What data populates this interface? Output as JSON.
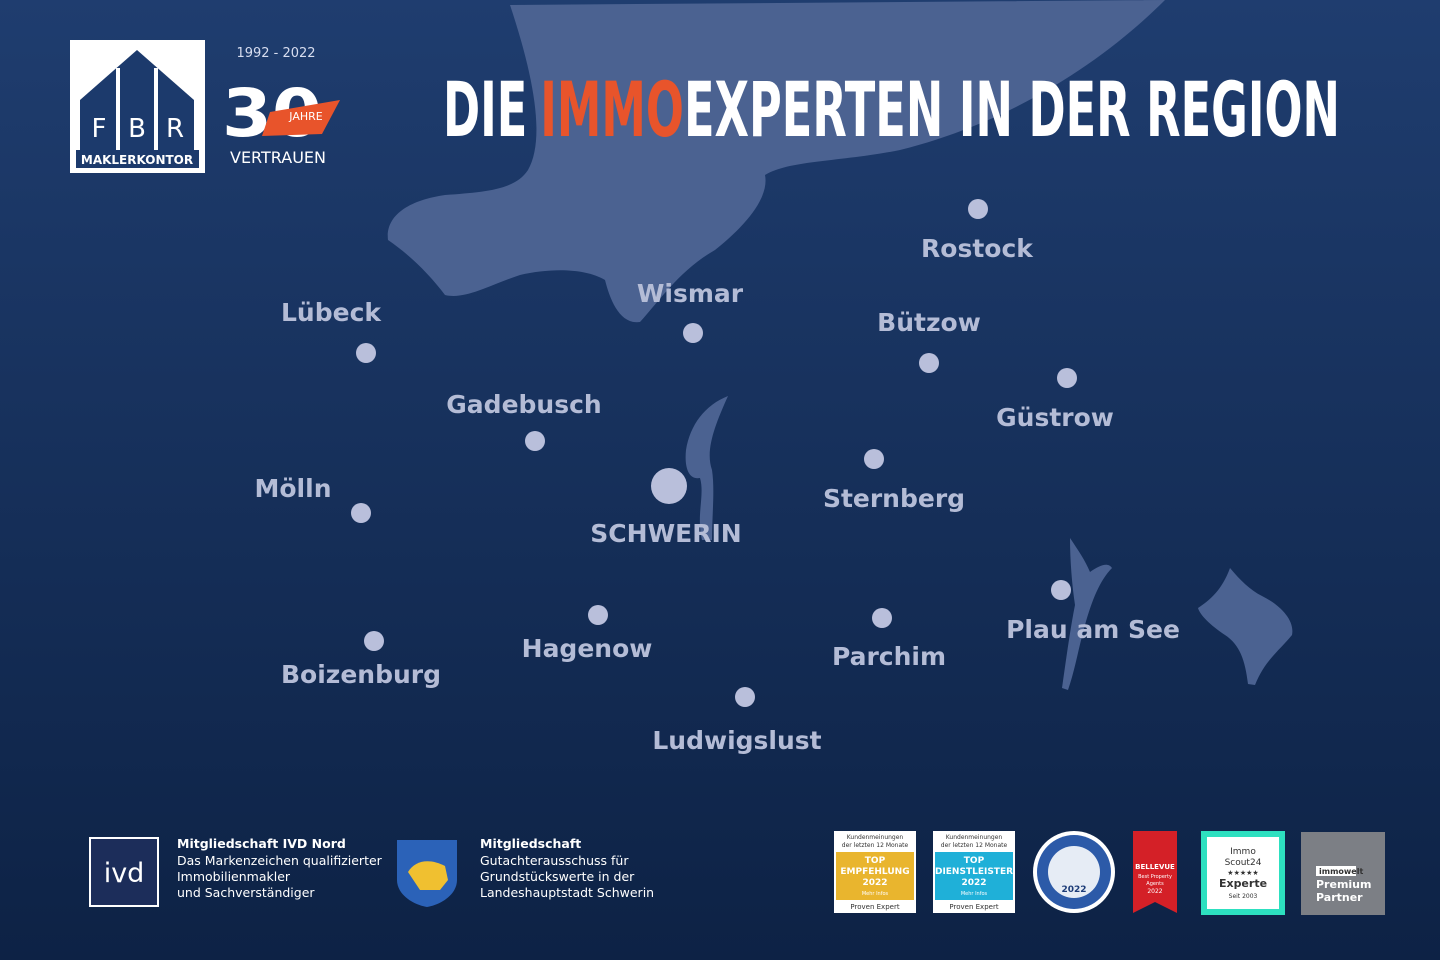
{
  "logo": {
    "letters": [
      "F",
      "B",
      "R"
    ],
    "subtitle": "MAKLERKONTOR"
  },
  "anniversary": {
    "years": "1992 - 2022",
    "number": "30",
    "unit": "JAHRE",
    "tagline": "VERTRAUEN"
  },
  "title": {
    "start": "DIE",
    "highlight": "IMMO",
    "end": "EXPERTEN IN DER REGION"
  },
  "cities": [
    "Rostock",
    "Wismar",
    "Bützow",
    "Lübeck",
    "Güstrow",
    "Gadebusch",
    "Sternberg",
    "Mölln",
    "SCHWERIN",
    "Hagenow",
    "Parchim",
    "Plau am See",
    "Boizenburg",
    "Ludwigslust"
  ],
  "memberships": [
    {
      "logo": "ivd",
      "title": "Mitgliedschaft IVD Nord",
      "lines": [
        "Das Markenzeichen qualifizierter",
        "Immobilienmakler",
        "und Sachverständiger"
      ]
    },
    {
      "title": "Mitgliedschaft",
      "lines": [
        "Gutachterausschuss für",
        "Grundstückswerte in der",
        "Landeshauptstadt Schwerin"
      ]
    }
  ],
  "badges": [
    {
      "lines": [
        "Kundenmeinungen",
        "der letzten 12 Monate",
        "TOP",
        "EMPFEHLUNG",
        "2022",
        "Mehr Infos",
        "Proven Expert"
      ]
    },
    {
      "lines": [
        "Kundenmeinungen",
        "der letzten 12 Monate",
        "TOP",
        "DIENSTLEISTER",
        "2022",
        "Mehr Infos",
        "Proven Expert"
      ]
    },
    {
      "lines": [
        "2022"
      ]
    },
    {
      "lines": [
        "BELLEVUE",
        "Best Property",
        "Agents",
        "2022"
      ]
    },
    {
      "lines": [
        "Immo",
        "Scout24",
        "★★★★★",
        "Experte",
        "Seit 2003"
      ]
    },
    {
      "lines": [
        "immowelt",
        "Premium",
        "Partner"
      ]
    }
  ]
}
